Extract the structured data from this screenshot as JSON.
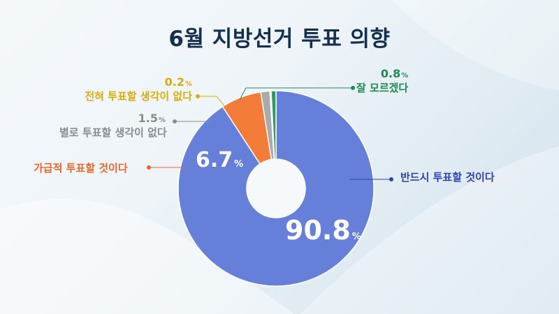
{
  "title": "6월 지방선거 투표 의향",
  "unit": "%",
  "colors": {
    "definitely": "#6680d9",
    "probably": "#f47c3a",
    "rather_not": "#a9aaab",
    "never": "#f2cf17",
    "dont_know": "#2f9b63",
    "definitely_label": "#2944b0",
    "probably_label": "#e9672a",
    "rather_not_label": "#8a8b8c",
    "never_label": "#d9ac0b",
    "dont_know_label": "#1e8a51"
  },
  "chart_data": {
    "type": "pie",
    "title": "6월 지방선거 투표 의향",
    "donut": true,
    "start": "12 o'clock",
    "direction": "clockwise",
    "categories": [
      "반드시 투표할 것이다",
      "가급적 투표할 것이다",
      "별로 투표할 생각이 없다",
      "전혀 투표할 생각이 없다",
      "잘 모르겠다"
    ],
    "values": [
      90.8,
      6.7,
      1.5,
      0.2,
      0.8
    ],
    "value_labels": [
      "90.8",
      "6.7",
      "1.5",
      "0.2",
      "0.8"
    ]
  }
}
